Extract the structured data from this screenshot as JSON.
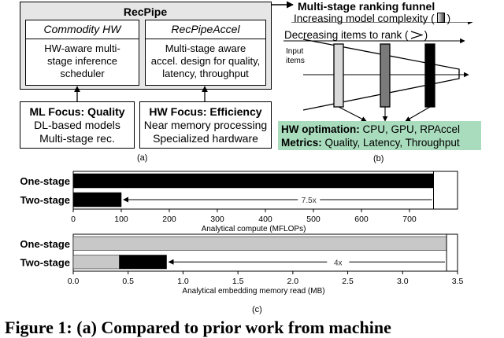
{
  "recpipe": {
    "title": "RecPipe",
    "left": {
      "title": "Commodity HW",
      "text": [
        "HW-aware multi-",
        "stage inference",
        "scheduler"
      ]
    },
    "right": {
      "title": "RecPipeAccel",
      "text": [
        "Multi-stage aware",
        "accel. design for quality,",
        "latency, throughput"
      ]
    }
  },
  "ml_box": {
    "title": "ML Focus: Quality",
    "lines": [
      "DL-based models",
      "Multi-stage rec."
    ]
  },
  "hw_box": {
    "title": "HW Focus: Efficiency",
    "lines": [
      "Near memory processing",
      "Specialized hardware"
    ]
  },
  "funnel": {
    "title": "Multi-stage ranking funnel",
    "line1": "Increasing model complexity (",
    "line1_end": ")",
    "line2": "Decreasing items to rank (",
    "line2_end": ")",
    "input_label": [
      "Input",
      "items"
    ],
    "opt_label": "HW optimation:",
    "opt_text": " CPU, GPU, RPAccel",
    "metrics_label": "Metrics:",
    "metrics_text": " Quality, Latency, Throughput",
    "highlight_color": "#a9dcbd"
  },
  "captions": {
    "a": "(a)",
    "b": "(b)",
    "c": "(c)"
  },
  "figure_caption": "Figure 1:   (a) Compared to prior work from machine",
  "chart_data": [
    {
      "type": "bar",
      "orientation": "horizontal",
      "categories": [
        "One-stage",
        "Two-stage"
      ],
      "series": [
        {
          "values": [
            750,
            100
          ],
          "color": "#000000"
        }
      ],
      "annotation": "7.5x",
      "xlabel": "Analytical compute (MFLOPs)",
      "xlim": [
        0,
        800
      ],
      "xticks": [
        0,
        100,
        200,
        300,
        400,
        500,
        600,
        700
      ]
    },
    {
      "type": "bar",
      "orientation": "horizontal",
      "stacked": true,
      "categories": [
        "One-stage",
        "Two-stage"
      ],
      "series": [
        {
          "values": [
            3.4,
            0.42
          ],
          "color": "#c8c8c8"
        },
        {
          "values": [
            0,
            0.43
          ],
          "color": "#000000"
        }
      ],
      "annotation": "4x",
      "xlabel": "Analytical embedding memory read (MB)",
      "xlim": [
        0,
        3.5
      ],
      "xticks": [
        0.0,
        0.5,
        1.0,
        1.5,
        2.0,
        2.5,
        3.0,
        3.5
      ]
    }
  ]
}
